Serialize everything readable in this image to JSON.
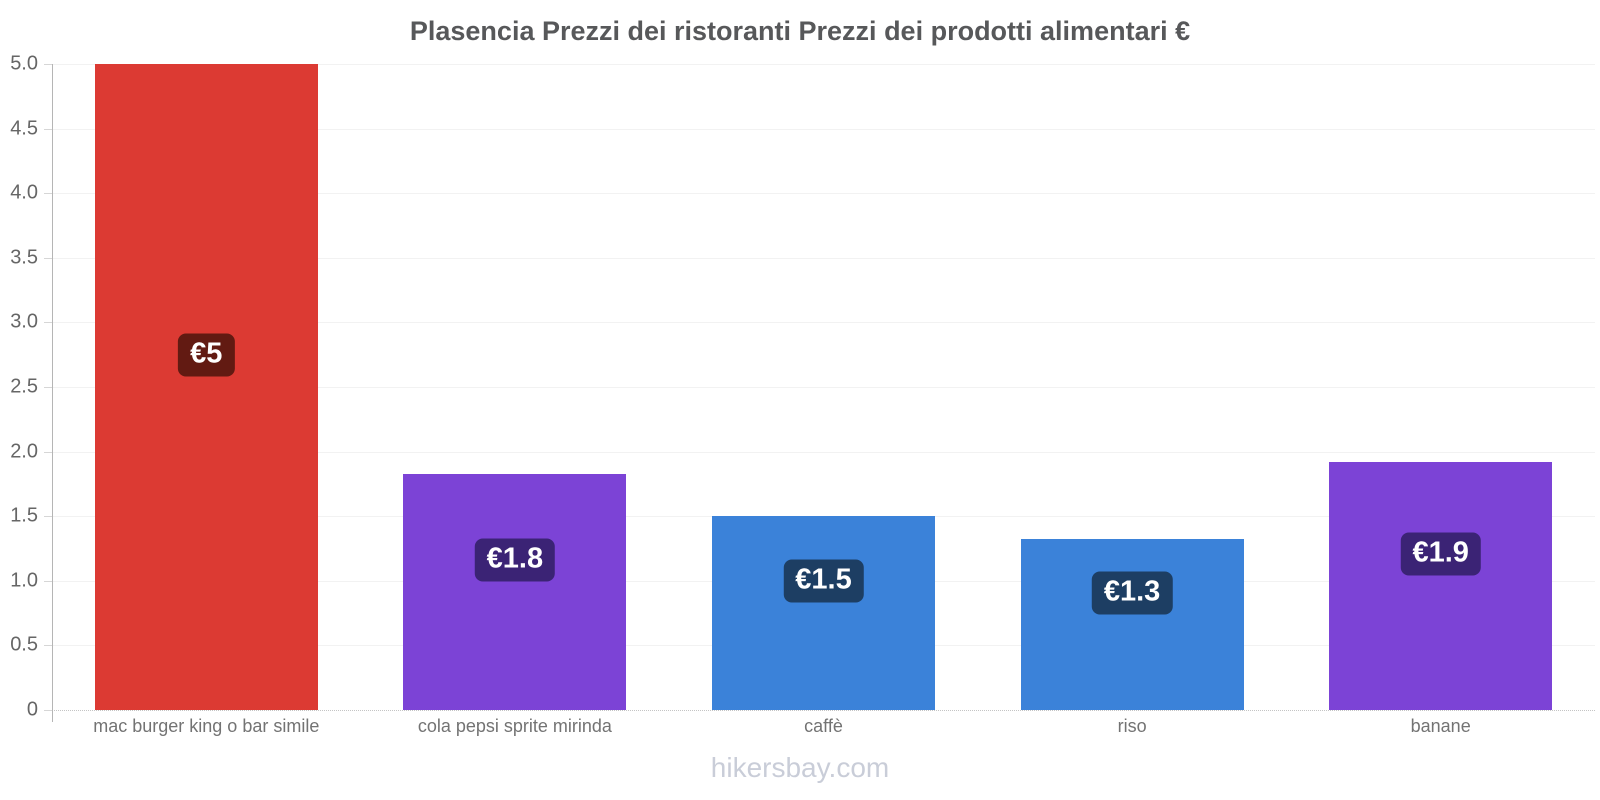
{
  "page": {
    "title": "Plasencia Prezzi dei ristoranti Prezzi dei prodotti alimentari €",
    "watermark": "hikersbay.com"
  },
  "chart_data": {
    "type": "bar",
    "title": "Plasencia Prezzi dei ristoranti Prezzi dei prodotti alimentari €",
    "categories": [
      "mac burger king o bar simile",
      "cola pepsi sprite mirinda",
      "caffè",
      "riso",
      "banane"
    ],
    "values": [
      5,
      1.83,
      1.5,
      1.32,
      1.92
    ],
    "value_labels": [
      "€5",
      "€1.8",
      "€1.5",
      "€1.3",
      "€1.9"
    ],
    "bar_colors": [
      "#dc3a33",
      "#7c43d6",
      "#3b82d9",
      "#3b82d9",
      "#7c43d6"
    ],
    "badge_colors": [
      "#621a12",
      "#3b2375",
      "#1d3e63",
      "#1d3e63",
      "#3b2375"
    ],
    "currency": "€",
    "xlabel": "",
    "ylabel": "",
    "ylim": [
      0,
      5
    ],
    "ytick_labels": [
      "0",
      "0.5",
      "1.0",
      "1.5",
      "2.0",
      "2.5",
      "3.0",
      "3.5",
      "4.0",
      "4.5",
      "5.0"
    ],
    "grid": true,
    "legend": false
  }
}
